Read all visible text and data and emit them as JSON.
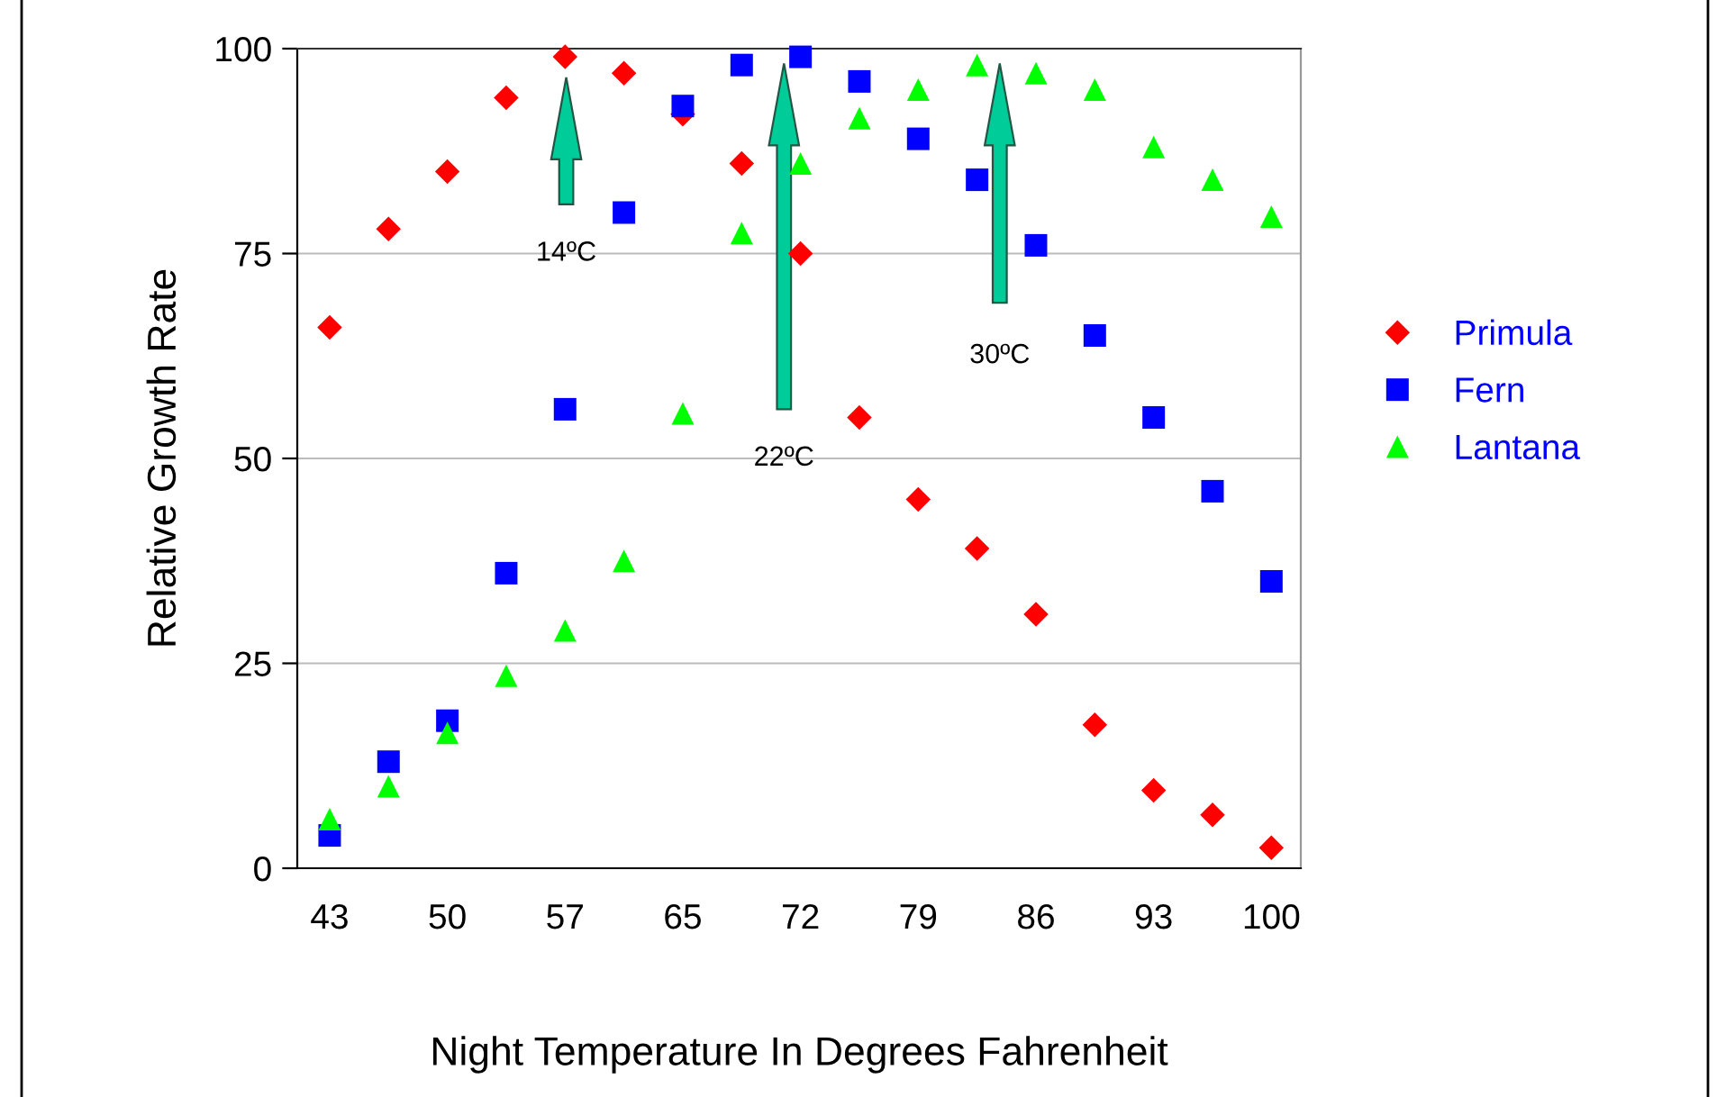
{
  "chart_data": {
    "type": "scatter",
    "xlabel": "Night Temperature In Degrees Fahrenheit",
    "ylabel": "Relative Growth Rate",
    "categories": [
      "43",
      null,
      "50",
      null,
      "57",
      null,
      "65",
      null,
      "72",
      null,
      "79",
      null,
      "86",
      null,
      "93",
      null,
      "100"
    ],
    "series": [
      {
        "name": "Primula",
        "color": "#ff0000",
        "marker": "diamond",
        "values": [
          66,
          78,
          85,
          94,
          99,
          97,
          92,
          86,
          75,
          55,
          45,
          39,
          31,
          17.5,
          9.5,
          6.5,
          2.5
        ]
      },
      {
        "name": "Fern",
        "color": "#0000ff",
        "marker": "square",
        "values": [
          4,
          13,
          18,
          36,
          56,
          80,
          93,
          98,
          99,
          96,
          89,
          84,
          76,
          65,
          55,
          46,
          35
        ]
      },
      {
        "name": "Lantana",
        "color": "#00ff00",
        "marker": "triangle",
        "values": [
          6,
          10,
          16.5,
          23.5,
          29,
          37.5,
          55.5,
          77.5,
          86,
          91.5,
          95,
          98,
          97,
          95,
          88,
          84,
          79.5
        ]
      }
    ],
    "ylim": [
      0,
      100
    ],
    "yticks": [
      0,
      25,
      50,
      75,
      100
    ],
    "grid": "y",
    "legend": "right",
    "annotations": [
      "14ºC",
      "22ºC",
      "30ºC"
    ]
  }
}
